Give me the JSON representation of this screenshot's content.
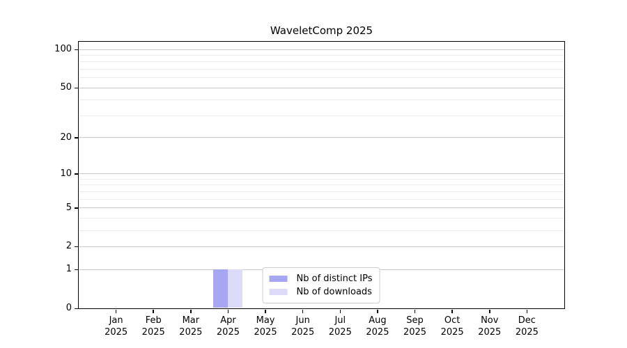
{
  "chart_data": {
    "type": "bar",
    "title": "WaveletComp 2025",
    "categories": [
      "Jan",
      "Feb",
      "Mar",
      "Apr",
      "May",
      "Jun",
      "Jul",
      "Aug",
      "Sep",
      "Oct",
      "Nov",
      "Dec"
    ],
    "x_axis": {
      "year_sublabel": "2025"
    },
    "series": [
      {
        "name": "Nb of distinct IPs",
        "color": "#a6a6f2",
        "values": [
          0,
          0,
          0,
          1,
          0,
          0,
          0,
          0,
          0,
          0,
          0,
          0
        ]
      },
      {
        "name": "Nb of downloads",
        "color": "#dbdbf8",
        "values": [
          0,
          0,
          0,
          1,
          0,
          0,
          0,
          0,
          0,
          0,
          0,
          0
        ]
      }
    ],
    "y_axis": {
      "scale": "log1p",
      "min": 0,
      "max": 115,
      "tick_values": [
        0,
        1,
        2,
        5,
        10,
        20,
        50,
        100
      ],
      "minor_gridlines": [
        3,
        4,
        6,
        7,
        8,
        9,
        30,
        40,
        60,
        70,
        80,
        90
      ]
    },
    "grid": true,
    "legend_position": "lower center",
    "colors": {
      "major_grid": "#c9c9c9",
      "minor_grid": "#ececec",
      "axis": "#000000"
    }
  }
}
